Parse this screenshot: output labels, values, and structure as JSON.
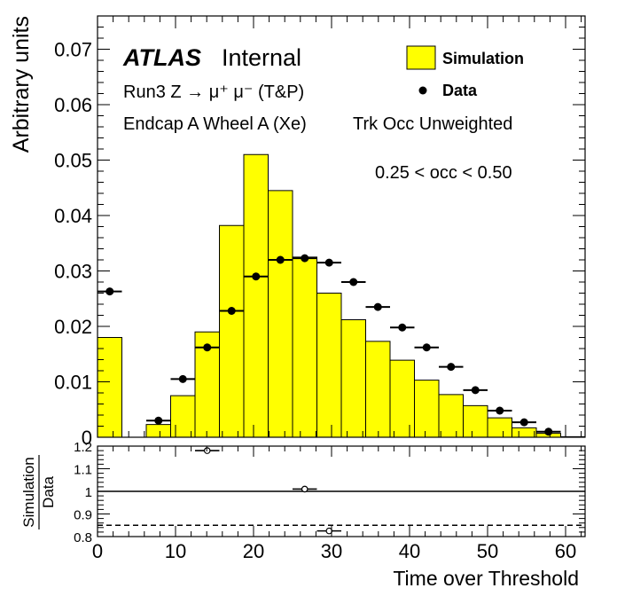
{
  "chart_data": [
    {
      "type": "histogram",
      "panel": "main",
      "experiment": "ATLAS",
      "experiment_status": "Internal",
      "annotations": [
        "Run3 Z → μ⁺ μ⁻ (T&P)",
        "Endcap A Wheel A (Xe)",
        "Trk Occ Unweighted",
        "0.25 < occ < 0.50"
      ],
      "xlabel": "Time over Threshold",
      "ylabel": "Arbitrary units",
      "xlim": [
        0,
        62.5
      ],
      "ylim": [
        0,
        0.076
      ],
      "y_ticks": [
        "0",
        "0.01",
        "0.02",
        "0.03",
        "0.04",
        "0.05",
        "0.06",
        "0.07"
      ],
      "x_ticks": [
        "0",
        "10",
        "20",
        "30",
        "40",
        "50",
        "60"
      ],
      "legend": {
        "position": "top-right",
        "entries": [
          "Simulation",
          "Data"
        ]
      },
      "bin_edges": [
        0,
        3.125,
        6.25,
        9.375,
        12.5,
        15.625,
        18.75,
        21.875,
        25,
        28.125,
        31.25,
        34.375,
        37.5,
        40.625,
        43.75,
        46.875,
        50,
        53.125,
        56.25,
        59.375,
        62.5
      ],
      "series": [
        {
          "name": "Simulation",
          "style": "filled-histogram",
          "color": "#ffff00",
          "values": [
            0.018,
            0.0,
            0.0023,
            0.0075,
            0.019,
            0.0382,
            0.051,
            0.0445,
            0.0325,
            0.026,
            0.0212,
            0.0173,
            0.0139,
            0.0103,
            0.0077,
            0.0057,
            0.0035,
            0.0017,
            0.0007,
            0.0001
          ]
        },
        {
          "name": "Data",
          "style": "points",
          "color": "#000000",
          "values": [
            0.0263,
            null,
            0.003,
            0.0105,
            0.0162,
            0.0228,
            0.029,
            0.032,
            0.0323,
            0.0315,
            0.028,
            0.0235,
            0.0198,
            0.0162,
            0.0127,
            0.0085,
            0.0048,
            0.0027,
            0.001,
            null
          ]
        }
      ]
    },
    {
      "type": "scatter",
      "panel": "ratio",
      "ylabel_numerator": "Simulation",
      "ylabel_denominator": "Data",
      "xlabel": "Time over Threshold",
      "xlim": [
        0,
        62.5
      ],
      "ylim": [
        0.8,
        1.2
      ],
      "y_ticks": [
        "0.8",
        "0.9",
        "1",
        "1.1",
        "1.2"
      ],
      "reference_line": 1.0,
      "dashed_line": 0.85,
      "points": [
        {
          "x": 14.06,
          "y": 1.18,
          "xerr": 1.5625
        },
        {
          "x": 26.56,
          "y": 1.01,
          "xerr": 1.5625
        },
        {
          "x": 29.69,
          "y": 0.825,
          "xerr": 1.5625
        }
      ]
    }
  ]
}
